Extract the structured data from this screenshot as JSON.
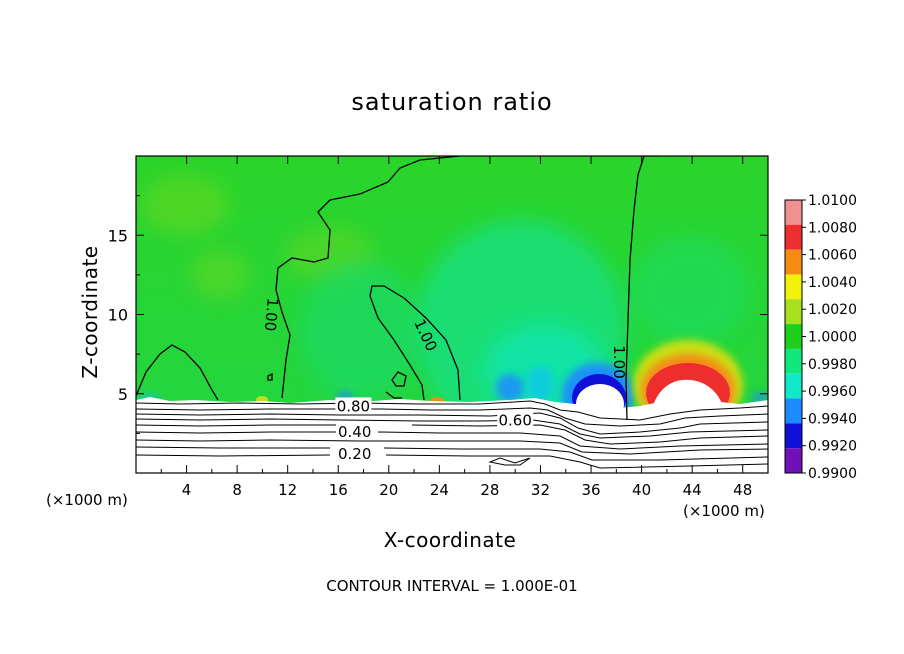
{
  "chart_data": {
    "type": "heatmap",
    "title": "saturation ratio",
    "xlabel": "X-coordinate",
    "ylabel": "Z-coordinate",
    "x_unit_left": "(×1000 m)",
    "x_unit_right": "(×1000 m)",
    "xlim": [
      0,
      50
    ],
    "ylim": [
      0,
      20
    ],
    "x_ticks": [
      "4",
      "8",
      "12",
      "16",
      "20",
      "24",
      "28",
      "32",
      "36",
      "40",
      "44",
      "48"
    ],
    "x_tick_values": [
      4,
      8,
      12,
      16,
      20,
      24,
      28,
      32,
      36,
      40,
      44,
      48
    ],
    "y_ticks": [
      "5",
      "10",
      "15"
    ],
    "y_tick_values": [
      5,
      10,
      15
    ],
    "footnote": "CONTOUR INTERVAL = 1.000E-01",
    "colorbar": {
      "labels": [
        "1.0100",
        "1.0080",
        "1.0060",
        "1.0040",
        "1.0020",
        "1.0000",
        "0.9980",
        "0.9960",
        "0.9940",
        "0.9920",
        "0.9900"
      ],
      "colors": [
        "#f19090",
        "#ee2e2e",
        "#f48c14",
        "#f2f20a",
        "#a6e01e",
        "#1ecf1e",
        "#10e87c",
        "#10e8c8",
        "#1d8cff",
        "#1010d8",
        "#7010b8"
      ]
    },
    "contour_labels": [
      {
        "text": "1.00",
        "x": 10.7,
        "z": 10.0
      },
      {
        "text": "1.00",
        "x": 22.9,
        "z": 8.7
      },
      {
        "text": "1.00",
        "x": 38.2,
        "z": 7.0
      },
      {
        "text": "0.80",
        "x": 17.2,
        "z": 4.2
      },
      {
        "text": "0.60",
        "x": 30.0,
        "z": 3.3
      },
      {
        "text": "0.40",
        "x": 17.3,
        "z": 2.6
      },
      {
        "text": "0.20",
        "x": 17.3,
        "z": 1.2
      }
    ]
  }
}
